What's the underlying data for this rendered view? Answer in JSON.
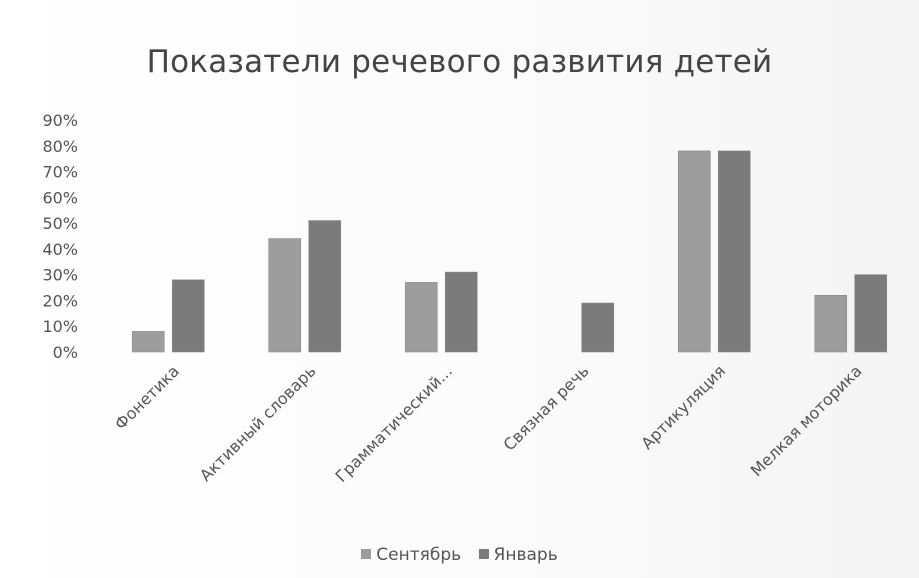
{
  "chart_data": {
    "type": "bar",
    "title": "Показатели речевого развития детей",
    "categories": [
      "Фонетика",
      "Активный словарь",
      "Грамматический...",
      "Связная речь",
      "Артикуляция",
      "Мелкая моторика"
    ],
    "series": [
      {
        "name": "Сентябрь",
        "values": [
          8,
          44,
          27,
          0,
          78,
          22
        ],
        "color": "#9d9d9d"
      },
      {
        "name": "Январь",
        "values": [
          28,
          51,
          31,
          19,
          78,
          30
        ],
        "color": "#7b7b7b"
      }
    ],
    "ylim": [
      0,
      90
    ],
    "yticks": [
      0,
      10,
      20,
      30,
      40,
      50,
      60,
      70,
      80,
      90
    ],
    "ytick_labels": [
      "0%",
      "10%",
      "20%",
      "30%",
      "40%",
      "50%",
      "60%",
      "70%",
      "80%",
      "90%"
    ],
    "xlabel": "",
    "ylabel": "",
    "grid": false,
    "legend_position": "bottom"
  }
}
